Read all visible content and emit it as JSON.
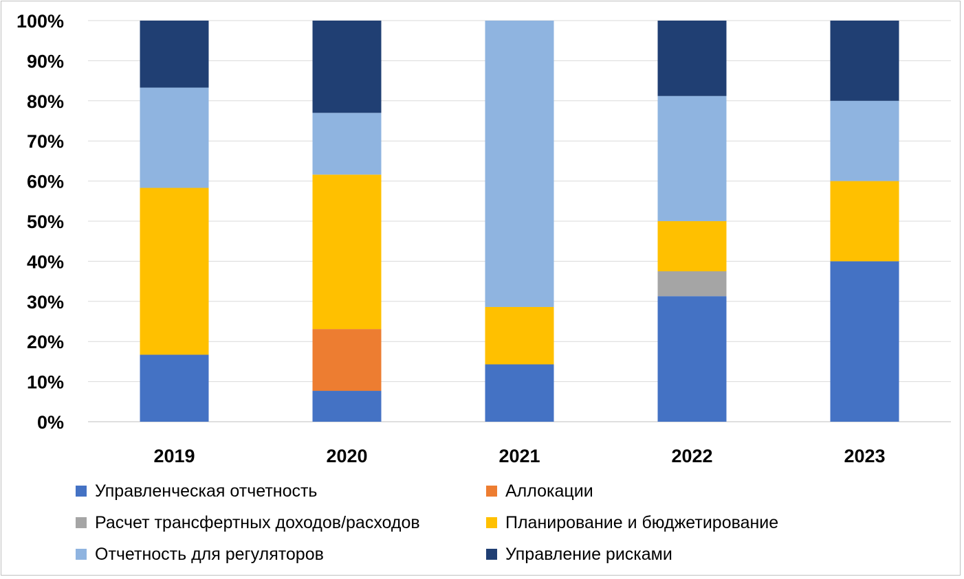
{
  "chart_data": {
    "type": "bar",
    "stacked": true,
    "percent_stacked": true,
    "categories": [
      "2019",
      "2020",
      "2021",
      "2022",
      "2023"
    ],
    "y_ticks": [
      "0%",
      "10%",
      "20%",
      "30%",
      "40%",
      "50%",
      "60%",
      "70%",
      "80%",
      "90%",
      "100%"
    ],
    "ylim": [
      0,
      100
    ],
    "grid": true,
    "legend_position": "bottom",
    "series": [
      {
        "name": "Управленческая отчетность",
        "color": "#4472C4",
        "values": [
          16.7,
          7.7,
          14.3,
          31.3,
          40.0
        ]
      },
      {
        "name": "Аллокации",
        "color": "#ED7D31",
        "values": [
          0,
          15.4,
          0,
          0,
          0
        ]
      },
      {
        "name": "Расчет трансфертных доходов/расходов",
        "color": "#A5A5A5",
        "values": [
          0,
          0,
          0,
          6.2,
          0
        ]
      },
      {
        "name": "Планирование и бюджетирование",
        "color": "#FFC000",
        "values": [
          41.6,
          38.5,
          14.3,
          12.5,
          20.0
        ]
      },
      {
        "name": "Отчетность для регуляторов",
        "color": "#8FB4E0",
        "values": [
          25.0,
          15.4,
          71.4,
          31.2,
          20.0
        ]
      },
      {
        "name": "Управление рисками",
        "color": "#203F73",
        "values": [
          16.7,
          23.0,
          0,
          18.8,
          20.0
        ]
      }
    ]
  }
}
